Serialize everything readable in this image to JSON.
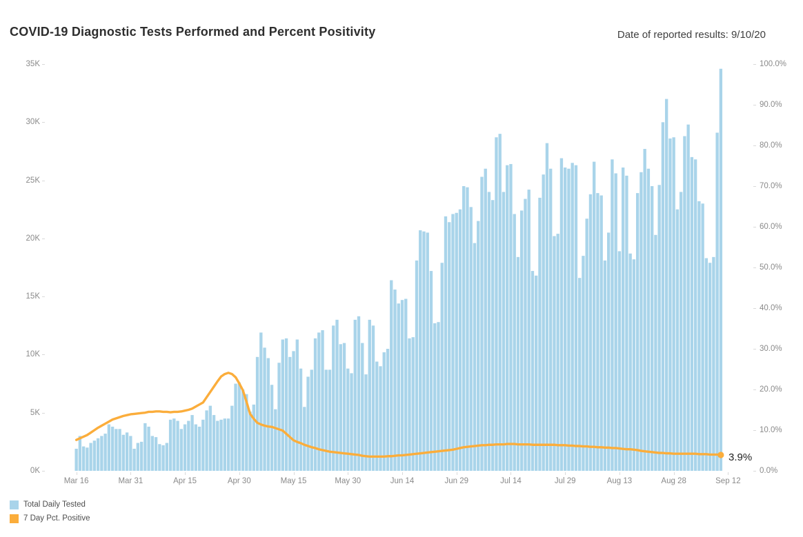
{
  "header": {
    "title": "COVID-19 Diagnostic Tests Performed and Percent Positivity",
    "date_note": "Date of reported results: 9/10/20"
  },
  "legend": {
    "items": [
      {
        "label": "Total Daily Tested",
        "color": "#A9D4EA"
      },
      {
        "label": "7 Day Pct. Positive",
        "color": "#FBAD3B"
      }
    ]
  },
  "chart_data": {
    "type": "bar",
    "subtype": "daily bars with overlaid 7-day percent line, dual y-axes",
    "x_start_date": "Mar 16",
    "x_end_date": "Sep 10",
    "x_tick_labels": [
      "Mar 16",
      "Mar 31",
      "Apr 15",
      "Apr 30",
      "May 15",
      "May 30",
      "Jun 14",
      "Jun 29",
      "Jul 14",
      "Jul 29",
      "Aug 13",
      "Aug 28",
      "Sep 12"
    ],
    "x_tick_day_index": [
      0,
      15,
      30,
      45,
      60,
      75,
      90,
      105,
      120,
      135,
      150,
      165,
      180
    ],
    "left_axis": {
      "tick_labels": [
        "0K",
        "5K",
        "10K",
        "15K",
        "20K",
        "25K",
        "30K",
        "35K"
      ],
      "min": 0,
      "max": 35,
      "unit": "thousand tests"
    },
    "right_axis": {
      "tick_labels": [
        "0.0%",
        "10.0%",
        "20.0%",
        "30.0%",
        "40.0%",
        "50.0%",
        "60.0%",
        "70.0%",
        "80.0%",
        "90.0%",
        "100.0%"
      ],
      "min": 0,
      "max": 100,
      "unit": "percent"
    },
    "grid": false,
    "legend_position": "bottom-left",
    "end_annotation": "3.9%",
    "series": [
      {
        "name": "Total Daily Tested",
        "type": "bar",
        "color": "#A9D4EA",
        "axis": "left",
        "unit": "thousands",
        "values": [
          1.9,
          3.0,
          2.1,
          2.0,
          2.4,
          2.6,
          2.8,
          3.0,
          3.2,
          4.0,
          3.8,
          3.6,
          3.6,
          3.1,
          3.3,
          3.0,
          1.9,
          2.4,
          2.5,
          4.1,
          3.8,
          3.0,
          2.9,
          2.3,
          2.2,
          2.4,
          4.4,
          4.5,
          4.3,
          3.6,
          4.0,
          4.3,
          4.8,
          4.0,
          3.8,
          4.4,
          5.2,
          5.6,
          4.8,
          4.3,
          4.4,
          4.5,
          4.5,
          5.6,
          7.5,
          7.6,
          7.0,
          6.6,
          5.1,
          5.7,
          9.8,
          11.9,
          10.6,
          9.7,
          7.4,
          5.3,
          9.3,
          11.3,
          11.4,
          9.8,
          10.3,
          11.3,
          8.8,
          5.5,
          8.1,
          8.7,
          11.4,
          11.9,
          12.1,
          8.7,
          8.7,
          12.5,
          13.0,
          10.9,
          11.0,
          8.8,
          8.4,
          13.0,
          13.3,
          11.0,
          8.3,
          13.0,
          12.5,
          9.4,
          9.0,
          10.2,
          10.5,
          16.4,
          15.6,
          14.4,
          14.7,
          14.8,
          11.4,
          11.5,
          18.1,
          20.7,
          20.6,
          20.5,
          17.2,
          12.7,
          12.8,
          17.9,
          21.9,
          21.4,
          22.1,
          22.2,
          22.5,
          24.5,
          24.4,
          22.7,
          19.6,
          21.5,
          25.3,
          26.0,
          24.0,
          23.3,
          28.7,
          29.0,
          24.0,
          26.3,
          26.4,
          22.1,
          18.4,
          22.4,
          23.4,
          24.2,
          17.2,
          16.8,
          23.5,
          25.5,
          28.2,
          26.0,
          20.2,
          20.4,
          26.9,
          26.1,
          26.0,
          26.5,
          26.3,
          16.6,
          18.5,
          21.7,
          23.8,
          26.6,
          23.9,
          23.7,
          18.1,
          20.5,
          26.8,
          25.6,
          18.9,
          26.1,
          25.4,
          18.7,
          18.2,
          23.9,
          25.7,
          27.7,
          26.0,
          24.5,
          20.3,
          24.6,
          30.0,
          32.0,
          28.6,
          28.7,
          22.5,
          24.0,
          28.8,
          29.8,
          27.0,
          26.8,
          23.2,
          23.0,
          18.3,
          17.9,
          18.4,
          29.1,
          34.6
        ]
      },
      {
        "name": "7 Day Pct. Positive",
        "type": "line",
        "color": "#FBAD3B",
        "axis": "right",
        "unit": "percent",
        "end_dot": true,
        "values": [
          7.6,
          8.0,
          8.4,
          8.8,
          9.4,
          10.0,
          10.6,
          11.1,
          11.6,
          12.1,
          12.6,
          12.9,
          13.2,
          13.5,
          13.7,
          13.9,
          14.0,
          14.1,
          14.2,
          14.3,
          14.5,
          14.5,
          14.6,
          14.6,
          14.5,
          14.5,
          14.4,
          14.5,
          14.5,
          14.6,
          14.8,
          15.0,
          15.3,
          15.8,
          16.3,
          16.8,
          18.1,
          19.4,
          20.7,
          22.0,
          23.2,
          23.8,
          24.1,
          23.8,
          23.0,
          21.5,
          19.8,
          17.0,
          14.0,
          12.8,
          11.8,
          11.4,
          11.1,
          10.9,
          10.8,
          10.5,
          10.2,
          9.9,
          9.1,
          8.3,
          7.5,
          7.1,
          6.8,
          6.4,
          6.1,
          5.8,
          5.6,
          5.3,
          5.1,
          4.9,
          4.7,
          4.6,
          4.5,
          4.4,
          4.3,
          4.2,
          4.1,
          4.0,
          3.9,
          3.7,
          3.6,
          3.5,
          3.5,
          3.5,
          3.5,
          3.5,
          3.6,
          3.6,
          3.7,
          3.8,
          3.8,
          3.9,
          4.0,
          4.1,
          4.2,
          4.3,
          4.4,
          4.5,
          4.6,
          4.7,
          4.8,
          4.9,
          5.0,
          5.1,
          5.2,
          5.4,
          5.6,
          5.8,
          5.9,
          6.0,
          6.1,
          6.2,
          6.3,
          6.3,
          6.4,
          6.4,
          6.5,
          6.5,
          6.5,
          6.6,
          6.6,
          6.6,
          6.5,
          6.5,
          6.5,
          6.5,
          6.4,
          6.4,
          6.4,
          6.4,
          6.4,
          6.4,
          6.4,
          6.3,
          6.3,
          6.3,
          6.2,
          6.2,
          6.1,
          6.1,
          6.0,
          6.0,
          5.9,
          5.9,
          5.8,
          5.8,
          5.7,
          5.7,
          5.6,
          5.6,
          5.5,
          5.4,
          5.3,
          5.3,
          5.2,
          5.1,
          4.9,
          4.8,
          4.7,
          4.6,
          4.5,
          4.4,
          4.4,
          4.3,
          4.3,
          4.2,
          4.2,
          4.2,
          4.2,
          4.2,
          4.2,
          4.2,
          4.1,
          4.1,
          4.1,
          4.0,
          4.0,
          4.0,
          3.9
        ]
      }
    ]
  }
}
